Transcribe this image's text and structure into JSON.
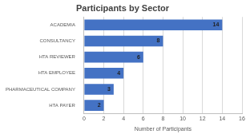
{
  "chart_data": {
    "type": "bar",
    "title": "Participants by Sector",
    "orientation": "horizontal",
    "categories": [
      "ACADEMIA",
      "CONSULTANCY",
      "HTA REVIEWER",
      "HTA EMPLOYEE",
      "PHARMACEUTICAL COMPANY",
      "HTA PAYER"
    ],
    "values": [
      14,
      8,
      6,
      4,
      3,
      2
    ],
    "color": "#4472c4",
    "x_label": "Number of Participants",
    "xlim": [
      0,
      16
    ],
    "xticks": [
      0,
      2,
      4,
      6,
      8,
      10,
      12,
      14,
      16
    ],
    "grid": true,
    "data_labels": true
  }
}
